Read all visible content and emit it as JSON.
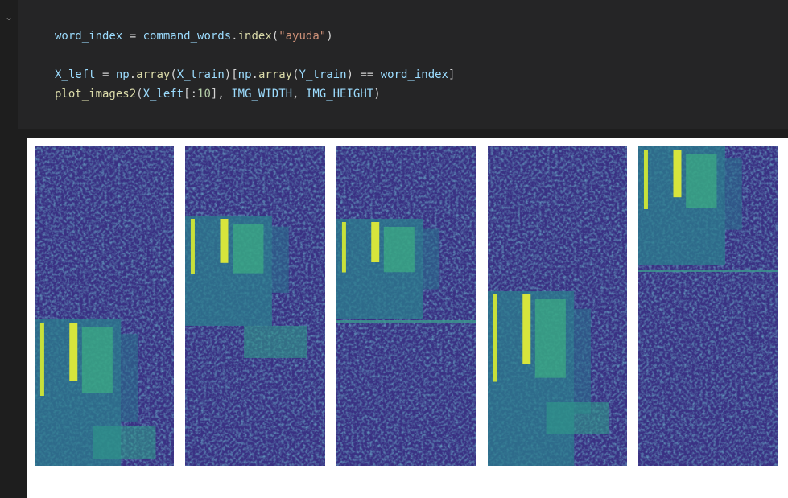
{
  "code": {
    "lines": [
      [
        {
          "text": "word_index",
          "color": "#9cdcfe"
        },
        {
          "text": " = ",
          "color": "#d4d4d4"
        },
        {
          "text": "command_words",
          "color": "#9cdcfe"
        },
        {
          "text": ".",
          "color": "#d4d4d4"
        },
        {
          "text": "index",
          "color": "#dcdcaa"
        },
        {
          "text": "(",
          "color": "#d4d4d4"
        },
        {
          "text": "\"ayuda\"",
          "color": "#ce9178"
        },
        {
          "text": ")",
          "color": "#d4d4d4"
        }
      ],
      [],
      [
        {
          "text": "X_left",
          "color": "#9cdcfe"
        },
        {
          "text": " = ",
          "color": "#d4d4d4"
        },
        {
          "text": "np",
          "color": "#9cdcfe"
        },
        {
          "text": ".",
          "color": "#d4d4d4"
        },
        {
          "text": "array",
          "color": "#dcdcaa"
        },
        {
          "text": "(",
          "color": "#d4d4d4"
        },
        {
          "text": "X_train",
          "color": "#9cdcfe"
        },
        {
          "text": ")[",
          "color": "#d4d4d4"
        },
        {
          "text": "np",
          "color": "#9cdcfe"
        },
        {
          "text": ".",
          "color": "#d4d4d4"
        },
        {
          "text": "array",
          "color": "#dcdcaa"
        },
        {
          "text": "(",
          "color": "#d4d4d4"
        },
        {
          "text": "Y_train",
          "color": "#9cdcfe"
        },
        {
          "text": ") == ",
          "color": "#d4d4d4"
        },
        {
          "text": "word_index",
          "color": "#9cdcfe"
        },
        {
          "text": "]",
          "color": "#d4d4d4"
        }
      ],
      [
        {
          "text": "plot_images2",
          "color": "#dcdcaa"
        },
        {
          "text": "(",
          "color": "#d4d4d4"
        },
        {
          "text": "X_left",
          "color": "#9cdcfe"
        },
        {
          "text": "[:",
          "color": "#d4d4d4"
        },
        {
          "text": "10",
          "color": "#b5cea8"
        },
        {
          "text": "], ",
          "color": "#d4d4d4"
        },
        {
          "text": "IMG_WIDTH",
          "color": "#9cdcfe"
        },
        {
          "text": ", ",
          "color": "#d4d4d4"
        },
        {
          "text": "IMG_HEIGHT",
          "color": "#9cdcfe"
        },
        {
          "text": ")",
          "color": "#d4d4d4"
        }
      ]
    ]
  }
}
